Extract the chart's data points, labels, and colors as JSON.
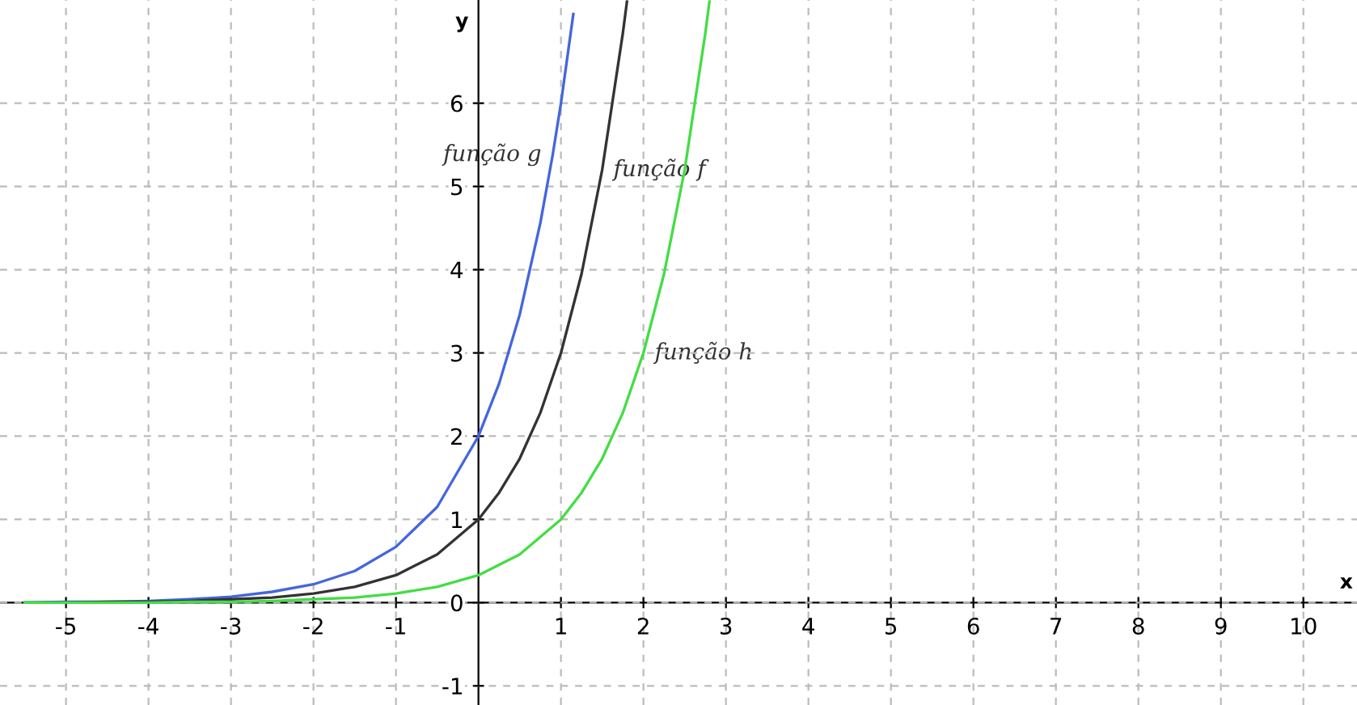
{
  "chart_data": {
    "type": "line",
    "xlabel": "x",
    "ylabel": "y",
    "xlim": [
      -5.8,
      10.65
    ],
    "ylim": [
      -1.23,
      7.24
    ],
    "xticks": [
      -5,
      -4,
      -3,
      -2,
      -1,
      1,
      2,
      3,
      4,
      5,
      6,
      7,
      8,
      9,
      10
    ],
    "yticks": [
      -1,
      0,
      1,
      2,
      3,
      4,
      5,
      6
    ],
    "grid": true,
    "line_style": "solid",
    "marker": "none",
    "series": [
      {
        "color": "#4466dd",
        "x": [
          -5.5,
          -5,
          -4.5,
          -4,
          -3.5,
          -3,
          -2.5,
          -2,
          -1.5,
          -1,
          -0.5,
          0,
          0.25,
          0.5,
          0.75,
          0.9,
          1,
          1.15
        ],
        "values": [
          0.0,
          0.01,
          0.01,
          0.02,
          0.04,
          0.07,
          0.13,
          0.22,
          0.38,
          0.67,
          1.15,
          2,
          2.63,
          3.46,
          4.56,
          5.38,
          6,
          7.07
        ]
      },
      {
        "color": "#333333",
        "x": [
          -5.5,
          -5,
          -4.5,
          -4,
          -3.5,
          -3,
          -2.5,
          -2,
          -1.5,
          -1,
          -0.5,
          0,
          0.25,
          0.5,
          0.75,
          1,
          1.25,
          1.5,
          1.75,
          1.8
        ],
        "values": [
          0.0,
          0.0,
          0.01,
          0.01,
          0.02,
          0.04,
          0.06,
          0.11,
          0.19,
          0.33,
          0.58,
          1,
          1.32,
          1.73,
          2.28,
          3,
          3.95,
          5.2,
          6.84,
          7.22
        ]
      },
      {
        "color": "#44dd44",
        "x": [
          -5.5,
          -4.5,
          -4,
          -3.5,
          -3,
          -2.5,
          -2,
          -1.5,
          -1,
          -0.5,
          0,
          0.5,
          1,
          1.25,
          1.5,
          1.75,
          2,
          2.25,
          2.5,
          2.75,
          2.8
        ],
        "values": [
          0.0,
          0.0,
          0.0,
          0.01,
          0.01,
          0.02,
          0.04,
          0.06,
          0.11,
          0.19,
          0.33,
          0.58,
          1,
          1.32,
          1.73,
          2.28,
          3,
          3.95,
          5.2,
          6.84,
          7.22
        ]
      }
    ],
    "annotations": [
      {
        "text": "função g",
        "x": 0.9,
        "y": 5.38
      },
      {
        "text": "função f",
        "x": 1.5,
        "y": 5.2
      },
      {
        "text": "função h",
        "x": 2,
        "y": 3
      }
    ]
  }
}
